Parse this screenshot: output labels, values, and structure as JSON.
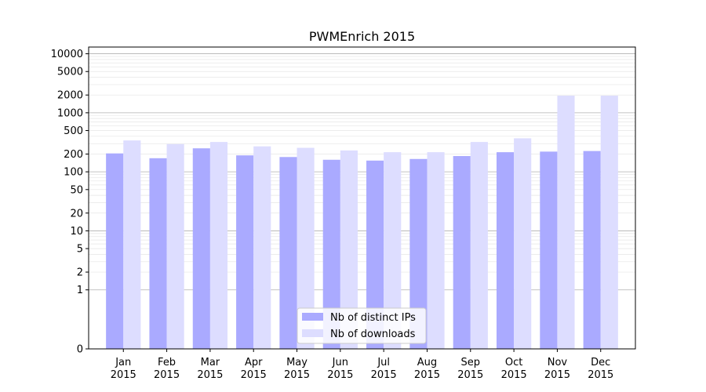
{
  "chart_data": {
    "type": "bar",
    "title": "PWMEnrich 2015",
    "xlabel": "",
    "ylabel": "",
    "yscale": "symlog",
    "ylim": [
      0,
      13000
    ],
    "yticks": [
      "0",
      "1",
      "2",
      "5",
      "10",
      "20",
      "50",
      "100",
      "200",
      "500",
      "1000",
      "2000",
      "5000",
      "10000"
    ],
    "ytick_values": [
      0,
      1,
      2,
      5,
      10,
      20,
      50,
      100,
      200,
      500,
      1000,
      2000,
      5000,
      10000
    ],
    "grid": true,
    "legend_position": "bottom-center",
    "categories": [
      [
        "Jan",
        "2015"
      ],
      [
        "Feb",
        "2015"
      ],
      [
        "Mar",
        "2015"
      ],
      [
        "Apr",
        "2015"
      ],
      [
        "May",
        "2015"
      ],
      [
        "Jun",
        "2015"
      ],
      [
        "Jul",
        "2015"
      ],
      [
        "Aug",
        "2015"
      ],
      [
        "Sep",
        "2015"
      ],
      [
        "Oct",
        "2015"
      ],
      [
        "Nov",
        "2015"
      ],
      [
        "Dec",
        "2015"
      ]
    ],
    "series": [
      {
        "name": "Nb of distinct IPs",
        "color": "#aaaaff",
        "values": [
          205,
          170,
          250,
          190,
          178,
          160,
          155,
          165,
          185,
          215,
          220,
          225
        ]
      },
      {
        "name": "Nb of downloads",
        "color": "#ddddff",
        "values": [
          340,
          295,
          320,
          270,
          255,
          230,
          215,
          215,
          320,
          370,
          1950,
          1950
        ]
      }
    ]
  }
}
